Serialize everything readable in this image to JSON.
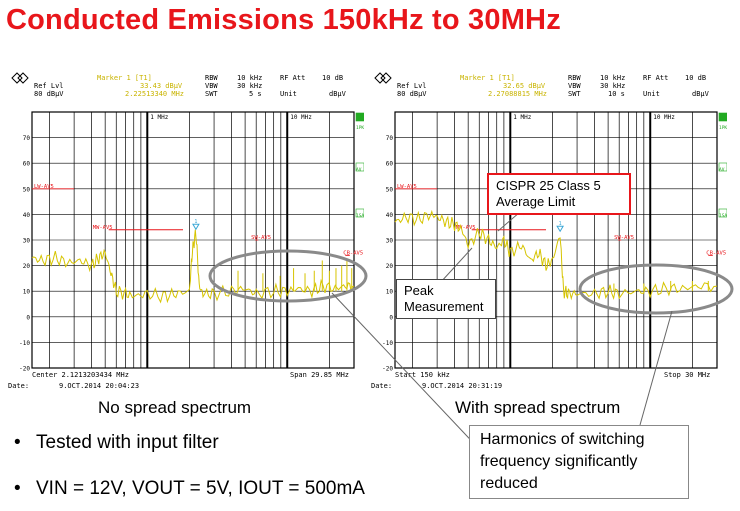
{
  "title": "Conducted Emissions 150kHz to 30MHz",
  "colors": {
    "title": "#e8161b",
    "trace": "#d6c400",
    "limit": "#e8161b",
    "grid": "#000000",
    "marker": "#3aa7d6",
    "ellipse": "#8a8a8a"
  },
  "left_panel": {
    "header": {
      "marker": "Marker 1 [T1]",
      "marker_level": "33.43 dBμV",
      "marker_freq": "2.22513340 MHz",
      "ref_lvl_label": "Ref Lvl",
      "ref_lvl_value": "80 dBμV",
      "rbw": "RBW",
      "rbw_value": "10 kHz",
      "vbw": "VBW",
      "vbw_value": "30 kHz",
      "swt": "SWT",
      "swt_value": "5 s",
      "rf_att": "RF Att",
      "rf_att_value": "10 dB",
      "unit_label": "Unit",
      "unit_value": "dBμV"
    },
    "footer_left": "Center 2.1213203434 MHz",
    "footer_right": "Span 29.85 MHz",
    "date_label": "Date:",
    "date_value": "9.OCT.2014  20:04:23",
    "caption": "No spread spectrum"
  },
  "right_panel": {
    "header": {
      "marker": "Marker 1 [T1]",
      "marker_level": "32.65 dBμV",
      "marker_freq": "2.27088815 MHz",
      "ref_lvl_label": "Ref Lvl",
      "ref_lvl_value": "80 dBμV",
      "rbw": "RBW",
      "rbw_value": "10 kHz",
      "vbw": "VBW",
      "vbw_value": "30 kHz",
      "swt": "SWT",
      "swt_value": "10 s",
      "rf_att": "RF Att",
      "rf_att_value": "10 dB",
      "unit_label": "Unit",
      "unit_value": "dBμV"
    },
    "footer_left": "Start 150 kHz",
    "footer_right": "Stop 30 MHz",
    "date_label": "Date:",
    "date_value": "9.OCT.2014  20:31:19",
    "caption": "With spread spectrum"
  },
  "callouts": {
    "cispr_line1": "CISPR 25 Class 5",
    "cispr_line2": "Average  Limit",
    "peak_line1": "Peak",
    "peak_line2": "Measurement",
    "harm_line1": "Harmonics of switching",
    "harm_line2": "frequency significantly",
    "harm_line3": "reduced"
  },
  "bullets": [
    "Tested with input filter",
    "VIN = 12V, VOUT = 5V, IOUT = 500mA"
  ],
  "bullet_symbol": "•",
  "chart_data": [
    {
      "type": "line",
      "title": "No spread spectrum",
      "xscale": "log",
      "xlim": [
        0.15,
        30
      ],
      "ylim": [
        -20,
        80
      ],
      "ylabel": "dBμV",
      "xtick_labels": [
        "1 MHz",
        "10 MHz"
      ],
      "ytick_labels": [
        "70",
        "60",
        "50",
        "40",
        "30",
        "20",
        "10",
        "0",
        "-10",
        "-20"
      ],
      "side_labels": [
        "1PK",
        "AV",
        "1SA"
      ],
      "limit_labels": [
        "LW-AV5",
        "MW-AV5",
        "SW-AV5",
        "CB-AV5"
      ],
      "limits": [
        {
          "name": "LW-AV5",
          "x": [
            0.15,
            0.3
          ],
          "y": 50
        },
        {
          "name": "MW-AV5",
          "x": [
            0.53,
            1.8
          ],
          "y": 34
        },
        {
          "name": "SW-AV5",
          "x": [
            5.9,
            6.2
          ],
          "y": 30
        },
        {
          "name": "CB-AV5",
          "x": [
            26,
            28
          ],
          "y": 24
        }
      ],
      "marker": {
        "x": 2.225,
        "y": 33.43
      },
      "series": [
        {
          "name": "Measurement",
          "x": [
            0.15,
            0.18,
            0.22,
            0.27,
            0.33,
            0.4,
            0.45,
            0.5,
            0.55,
            0.6,
            0.7,
            0.8,
            1.0,
            1.3,
            1.6,
            2.0,
            2.1,
            2.225,
            2.35,
            2.5,
            3.0,
            4.0,
            5.0,
            6.0,
            8.0,
            10.0,
            12.0,
            15.0,
            18.0,
            22.0,
            26.0,
            30.0
          ],
          "y": [
            23,
            22,
            23,
            21,
            22,
            20,
            23,
            25,
            17,
            10,
            9,
            8,
            9,
            8,
            9,
            10,
            26,
            33,
            12,
            9,
            9,
            10,
            11,
            9,
            10,
            10,
            11,
            10,
            12,
            11,
            12,
            12
          ]
        }
      ]
    },
    {
      "type": "line",
      "title": "With spread spectrum",
      "xscale": "log",
      "xlim": [
        0.15,
        30
      ],
      "ylim": [
        -20,
        80
      ],
      "ylabel": "dBμV",
      "xtick_labels": [
        "1 MHz",
        "10 MHz"
      ],
      "ytick_labels": [
        "70",
        "60",
        "50",
        "40",
        "30",
        "20",
        "10",
        "0",
        "-10",
        "-20"
      ],
      "side_labels": [
        "1PK",
        "AV",
        "1SA"
      ],
      "limit_labels": [
        "LW-AV5",
        "MW-AV5",
        "SW-AV5",
        "CB-AV5"
      ],
      "limits": [
        {
          "name": "LW-AV5",
          "x": [
            0.15,
            0.3
          ],
          "y": 50
        },
        {
          "name": "MW-AV5",
          "x": [
            0.53,
            1.8
          ],
          "y": 34
        },
        {
          "name": "SW-AV5",
          "x": [
            5.9,
            6.2
          ],
          "y": 30
        },
        {
          "name": "CB-AV5",
          "x": [
            26,
            28
          ],
          "y": 24
        }
      ],
      "marker": {
        "x": 2.27,
        "y": 32.65
      },
      "series": [
        {
          "name": "Measurement",
          "x": [
            0.15,
            0.18,
            0.22,
            0.27,
            0.3,
            0.35,
            0.4,
            0.45,
            0.5,
            0.6,
            0.7,
            0.8,
            0.9,
            1.0,
            1.2,
            1.4,
            1.6,
            1.8,
            2.0,
            2.27,
            2.4,
            2.6,
            3.0,
            4.0,
            5.0,
            6.0,
            8.0,
            10.0,
            13.0,
            17.0,
            22.0,
            30.0
          ],
          "y": [
            37,
            39,
            38,
            40,
            39,
            37,
            36,
            34,
            28,
            33,
            30,
            27,
            30,
            25,
            28,
            22,
            25,
            20,
            22,
            32,
            10,
            9,
            9,
            9,
            10,
            9,
            10,
            10,
            11,
            11,
            12,
            12
          ]
        }
      ]
    }
  ]
}
